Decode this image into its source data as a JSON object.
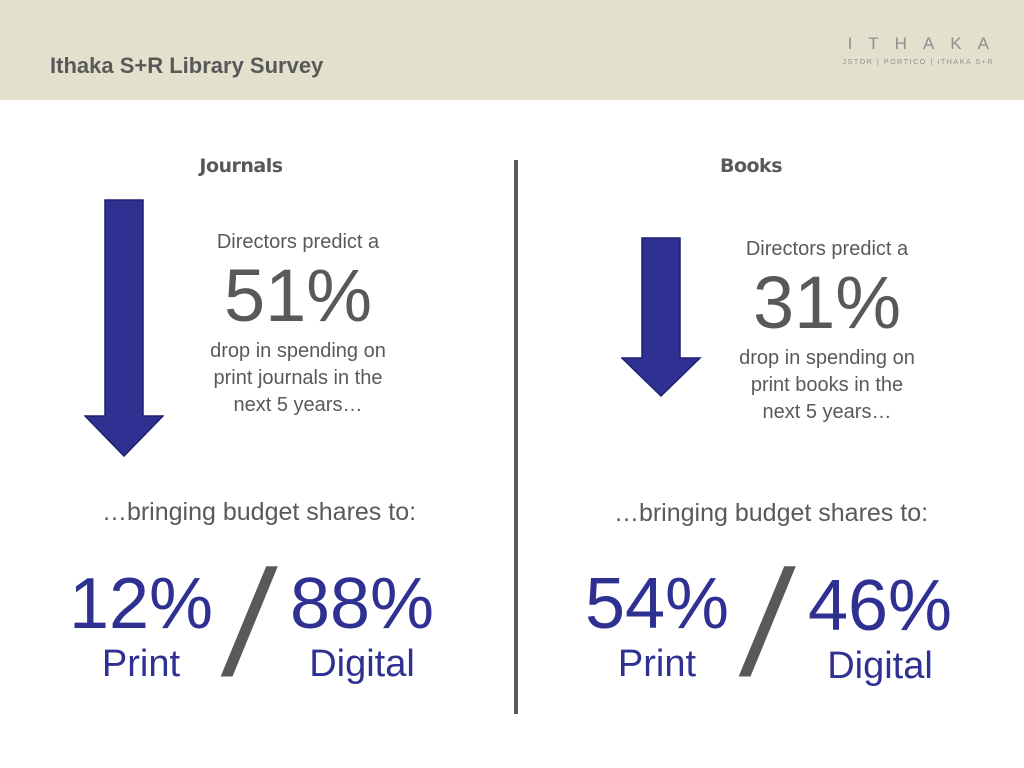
{
  "header": {
    "title": "Ithaka S+R Library Survey",
    "logo": {
      "word": "ITHAKA",
      "tagline": "JSTOR | PORTICO | ITHAKA S+R"
    }
  },
  "colors": {
    "header_bg": "#e3e0cd",
    "accent": "#2e3192",
    "text": "#595959"
  },
  "journals": {
    "heading": "Journals",
    "arrow_icon": "down-arrow",
    "intro": "Directors predict a",
    "percent": "51%",
    "tail_lines": [
      "drop in spending on",
      "print journals in the",
      "next 5 years…"
    ],
    "bringing": "…bringing budget shares to:",
    "print_percent": "12%",
    "print_label": "Print",
    "separator": "/",
    "digital_percent": "88%",
    "digital_label": "Digital"
  },
  "books": {
    "heading": "Books",
    "arrow_icon": "down-arrow",
    "intro": "Directors predict a",
    "percent": "31%",
    "tail_lines": [
      "drop in spending on",
      "print books in the",
      "next 5 years…"
    ],
    "bringing": "…bringing budget shares to:",
    "print_percent": "54%",
    "print_label": "Print",
    "separator": "/",
    "digital_percent": "46%",
    "digital_label": "Digital"
  }
}
